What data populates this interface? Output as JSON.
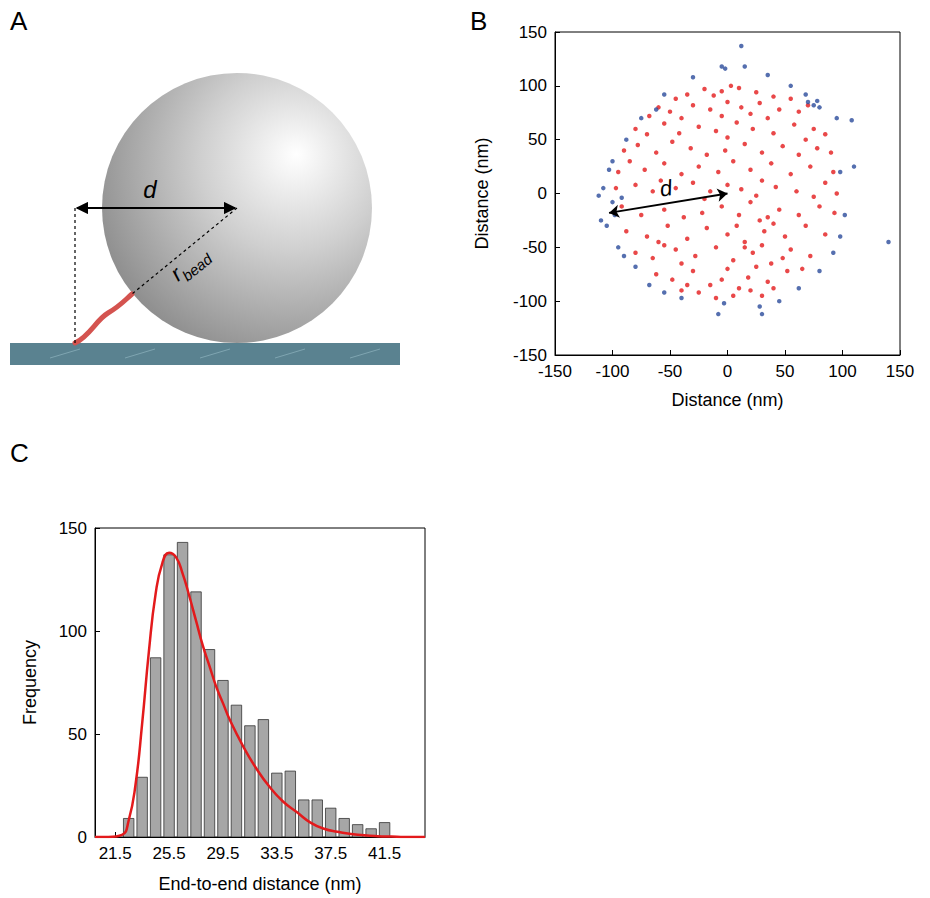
{
  "diagram": {
    "panel": "A",
    "labels": [
      {
        "text": "d"
      },
      {
        "text": "r",
        "subscript": "bead"
      }
    ]
  },
  "chart_data": [
    {
      "panel": "B",
      "type": "scatter",
      "xlabel": "Distance (nm)",
      "ylabel": "Distance (nm)",
      "xlim": [
        -150,
        150
      ],
      "ylim": [
        -150,
        150
      ],
      "xticks": [
        -150,
        -100,
        -50,
        0,
        50,
        100,
        150
      ],
      "yticks": [
        -150,
        -100,
        -50,
        0,
        50,
        100,
        150
      ],
      "grid": false,
      "annotations": [
        {
          "text": "d",
          "from": [
            0,
            0
          ],
          "to": [
            -103,
            -18
          ]
        }
      ],
      "series": [
        {
          "color": "#e41a1c",
          "marker": "circle",
          "values": [
            [
              -20,
              97
            ],
            [
              -5,
              95
            ],
            [
              10,
              98
            ],
            [
              25,
              94
            ],
            [
              40,
              90
            ],
            [
              -35,
              92
            ],
            [
              55,
              88
            ],
            [
              -45,
              88
            ],
            [
              3,
              100
            ],
            [
              -12,
              91
            ],
            [
              -60,
              80
            ],
            [
              -50,
              76
            ],
            [
              -30,
              82
            ],
            [
              -15,
              78
            ],
            [
              0,
              85
            ],
            [
              12,
              80
            ],
            [
              28,
              84
            ],
            [
              45,
              78
            ],
            [
              62,
              76
            ],
            [
              70,
              82
            ],
            [
              -68,
              72
            ],
            [
              20,
              74
            ],
            [
              -5,
              72
            ],
            [
              35,
              70
            ],
            [
              -40,
              70
            ],
            [
              -80,
              60
            ],
            [
              -70,
              55
            ],
            [
              -55,
              65
            ],
            [
              -25,
              62
            ],
            [
              -10,
              58
            ],
            [
              8,
              66
            ],
            [
              22,
              60
            ],
            [
              40,
              56
            ],
            [
              58,
              64
            ],
            [
              75,
              60
            ],
            [
              85,
              55
            ],
            [
              -42,
              56
            ],
            [
              0,
              52
            ],
            [
              68,
              50
            ],
            [
              -90,
              40
            ],
            [
              -78,
              45
            ],
            [
              -62,
              38
            ],
            [
              -48,
              48
            ],
            [
              -32,
              42
            ],
            [
              -18,
              36
            ],
            [
              -2,
              40
            ],
            [
              15,
              46
            ],
            [
              30,
              38
            ],
            [
              48,
              44
            ],
            [
              62,
              36
            ],
            [
              78,
              42
            ],
            [
              90,
              38
            ],
            [
              -85,
              30
            ],
            [
              5,
              30
            ],
            [
              38,
              28
            ],
            [
              -55,
              28
            ],
            [
              -95,
              20
            ],
            [
              -72,
              22
            ],
            [
              -40,
              18
            ],
            [
              -25,
              25
            ],
            [
              -8,
              20
            ],
            [
              20,
              22
            ],
            [
              55,
              18
            ],
            [
              72,
              25
            ],
            [
              92,
              20
            ],
            [
              -58,
              12
            ],
            [
              85,
              10
            ],
            [
              30,
              12
            ],
            [
              -97,
              5
            ],
            [
              -80,
              8
            ],
            [
              -65,
              2
            ],
            [
              -45,
              5
            ],
            [
              -30,
              10
            ],
            [
              -15,
              2
            ],
            [
              0,
              8
            ],
            [
              12,
              4
            ],
            [
              25,
              -2
            ],
            [
              42,
              6
            ],
            [
              60,
              2
            ],
            [
              75,
              -3
            ],
            [
              95,
              0
            ],
            [
              -20,
              -5
            ],
            [
              -92,
              -12
            ],
            [
              -75,
              -20
            ],
            [
              -55,
              -15
            ],
            [
              -38,
              -22
            ],
            [
              -22,
              -18
            ],
            [
              -5,
              -12
            ],
            [
              10,
              -20
            ],
            [
              28,
              -25
            ],
            [
              45,
              -15
            ],
            [
              62,
              -20
            ],
            [
              80,
              -12
            ],
            [
              93,
              -18
            ],
            [
              35,
              -22
            ],
            [
              20,
              -8
            ],
            [
              -88,
              -35
            ],
            [
              -70,
              -40
            ],
            [
              -52,
              -30
            ],
            [
              -35,
              -42
            ],
            [
              -18,
              -32
            ],
            [
              0,
              -38
            ],
            [
              15,
              -45
            ],
            [
              32,
              -35
            ],
            [
              50,
              -40
            ],
            [
              68,
              -30
            ],
            [
              85,
              -38
            ],
            [
              -60,
              -45
            ],
            [
              40,
              -28
            ],
            [
              8,
              -30
            ],
            [
              -80,
              -55
            ],
            [
              -65,
              -60
            ],
            [
              -45,
              -52
            ],
            [
              -28,
              -58
            ],
            [
              -10,
              -50
            ],
            [
              5,
              -62
            ],
            [
              22,
              -55
            ],
            [
              38,
              -65
            ],
            [
              55,
              -52
            ],
            [
              72,
              -58
            ],
            [
              -40,
              -65
            ],
            [
              48,
              -60
            ],
            [
              -55,
              -48
            ],
            [
              15,
              -50
            ],
            [
              30,
              -48
            ],
            [
              -62,
              -75
            ],
            [
              -48,
              -80
            ],
            [
              -30,
              -72
            ],
            [
              -15,
              -85
            ],
            [
              0,
              -70
            ],
            [
              18,
              -78
            ],
            [
              35,
              -82
            ],
            [
              52,
              -72
            ],
            [
              65,
              -70
            ],
            [
              -5,
              -80
            ],
            [
              25,
              -68
            ],
            [
              10,
              -88
            ],
            [
              -35,
              -85
            ],
            [
              -25,
              -92
            ],
            [
              -10,
              -97
            ],
            [
              5,
              -95
            ],
            [
              20,
              -90
            ],
            [
              40,
              -88
            ],
            [
              -40,
              -90
            ],
            [
              30,
              -95
            ]
          ]
        },
        {
          "color": "#2a4b9b",
          "marker": "circle",
          "values": [
            [
              12,
              137
            ],
            [
              -5,
              118
            ],
            [
              -2,
              116
            ],
            [
              15,
              118
            ],
            [
              -30,
              108
            ],
            [
              35,
              110
            ],
            [
              55,
              100
            ],
            [
              68,
              92
            ],
            [
              70,
              85
            ],
            [
              75,
              82
            ],
            [
              80,
              80
            ],
            [
              78,
              86
            ],
            [
              -55,
              92
            ],
            [
              -62,
              78
            ],
            [
              -75,
              70
            ],
            [
              -88,
              50
            ],
            [
              -100,
              30
            ],
            [
              -103,
              22
            ],
            [
              -108,
              5
            ],
            [
              -112,
              -2
            ],
            [
              -100,
              -8
            ],
            [
              -98,
              -20
            ],
            [
              -105,
              -30
            ],
            [
              -110,
              -25
            ],
            [
              -95,
              -50
            ],
            [
              -90,
              -58
            ],
            [
              -80,
              -68
            ],
            [
              -68,
              -85
            ],
            [
              -55,
              -92
            ],
            [
              -40,
              -97
            ],
            [
              -8,
              -112
            ],
            [
              -3,
              -102
            ],
            [
              30,
              -112
            ],
            [
              28,
              -105
            ],
            [
              45,
              -100
            ],
            [
              62,
              -88
            ],
            [
              80,
              -72
            ],
            [
              92,
              -55
            ],
            [
              98,
              -40
            ],
            [
              102,
              -20
            ],
            [
              110,
              25
            ],
            [
              108,
              68
            ],
            [
              95,
              70
            ],
            [
              140,
              -45
            ],
            [
              98,
              20
            ],
            [
              -92,
              -4
            ]
          ]
        }
      ]
    },
    {
      "panel": "C",
      "type": "histogram",
      "xlabel": "End-to-end distance (nm)",
      "ylabel": "Frequency",
      "xlim": [
        20,
        44.5
      ],
      "ylim": [
        0,
        150
      ],
      "xticks": [
        21.5,
        25.5,
        29.5,
        33.5,
        37.5,
        41.5
      ],
      "yticks": [
        0,
        50,
        100,
        150
      ],
      "grid": false,
      "color": "#a6a6a6",
      "bins": [
        22,
        23,
        24,
        25,
        26,
        27,
        28,
        29,
        30,
        31,
        32,
        33,
        34,
        35,
        36,
        37,
        38,
        39,
        40,
        41,
        42
      ],
      "counts": [
        9,
        29,
        87,
        137,
        143,
        119,
        91,
        76,
        64,
        54,
        57,
        31,
        32,
        18,
        18,
        14,
        9,
        6,
        4,
        7
      ],
      "fit": {
        "type": "line",
        "color": "#e31a1c",
        "x": [
          20,
          21,
          22,
          22.5,
          23,
          23.5,
          24,
          24.5,
          25,
          25.5,
          26,
          26.5,
          27,
          27.5,
          28,
          28.5,
          29,
          29.5,
          30,
          31,
          32,
          33,
          34,
          35,
          36,
          37,
          38,
          39,
          40,
          41,
          42,
          43,
          44.5
        ],
        "values": [
          0,
          0,
          1,
          8,
          25,
          55,
          90,
          118,
          133,
          138,
          136,
          128,
          117,
          105,
          93,
          83,
          73,
          65,
          57,
          44,
          33,
          24,
          17,
          12,
          7,
          4,
          2.5,
          1.5,
          0.8,
          0.4,
          0.2,
          0,
          0
        ]
      }
    }
  ]
}
